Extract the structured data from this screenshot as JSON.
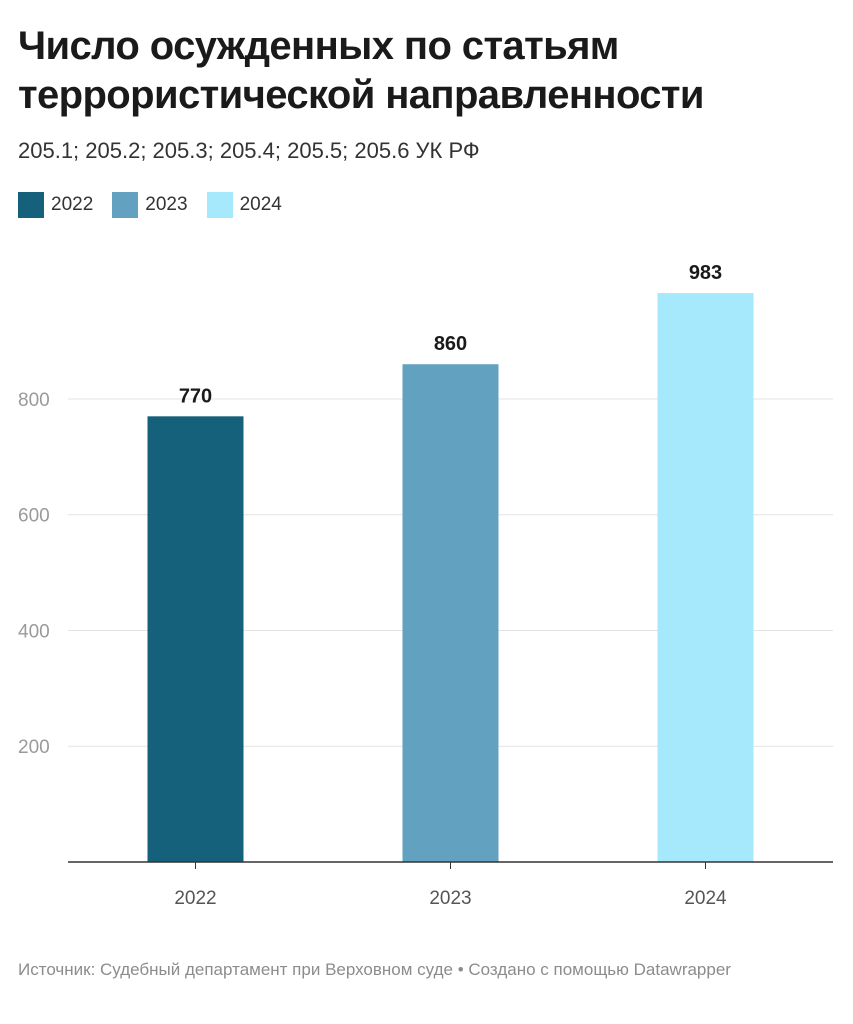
{
  "title": [
    "Число осужденных по статьям",
    "террористической направленности"
  ],
  "subtitle": "205.1; 205.2; 205.3; 205.4; 205.5; 205.6 УК РФ",
  "legend": [
    {
      "label": "2022",
      "color": "#15607a"
    },
    {
      "label": "2023",
      "color": "#62a1bf"
    },
    {
      "label": "2024",
      "color": "#a6e9fc"
    }
  ],
  "footer": {
    "source": "Источник: Судебный департамент при Верховном суде",
    "separator": " • ",
    "credit": "Создано с помощью Datawrapper"
  },
  "chart_data": {
    "type": "bar",
    "title": "Число осужденных по статьям террористической направленности",
    "subtitle": "205.1; 205.2; 205.3; 205.4; 205.5; 205.6 УК РФ",
    "categories": [
      "2022",
      "2023",
      "2024"
    ],
    "values": [
      770,
      860,
      983
    ],
    "colors": [
      "#15607a",
      "#62a1bf",
      "#a6e9fc"
    ],
    "xlabel": "",
    "ylabel": "",
    "ylim": [
      0,
      1000
    ],
    "yticks": [
      200,
      400,
      600,
      800
    ],
    "grid": true,
    "data_labels": true,
    "legend_position": "top-left"
  }
}
